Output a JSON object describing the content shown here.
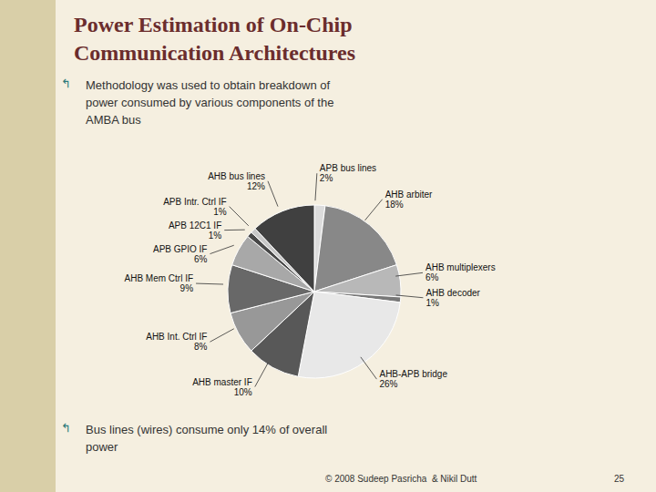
{
  "chart_data": {
    "type": "pie",
    "title": "Power Estimation of On-Chip\nCommunication Architectures",
    "annotations": [
      "↰",
      "Methodology was used to obtain breakdown of\npower consumed by various components of the\nAMBA bus",
      "↰",
      "Bus lines (wires) consume only 14% of overall\npower",
      "© 2008 Sudeep Pasricha  & Nikil Dutt",
      "25"
    ],
    "categories": [
      "APB bus lines",
      "AHB arbiter",
      "AHB multiplexers",
      "AHB decoder",
      "AHB-APB bridge",
      "AHB master IF",
      "AHB Int. Ctrl IF",
      "AHB Mem Ctrl IF",
      "APB GPIO IF",
      "APB 12C1 IF",
      "APB Intr. Ctrl IF",
      "AHB bus lines"
    ],
    "values": [
      2,
      18,
      6,
      1,
      26,
      10,
      8,
      9,
      6,
      1,
      1,
      12
    ],
    "value_labels": [
      "2%",
      "18%",
      "6%",
      "1%",
      "26%",
      "10%",
      "8%",
      "9%",
      "6%",
      "1%",
      "1%",
      "12%"
    ],
    "colors": [
      "#DCDCDC",
      "#888888",
      "#B8B8B8",
      "#787878",
      "#E8E8E8",
      "#585858",
      "#989898",
      "#686868",
      "#A8A8A8",
      "#484848",
      "#C8C8C8",
      "#404040"
    ],
    "data_labels": true
  }
}
